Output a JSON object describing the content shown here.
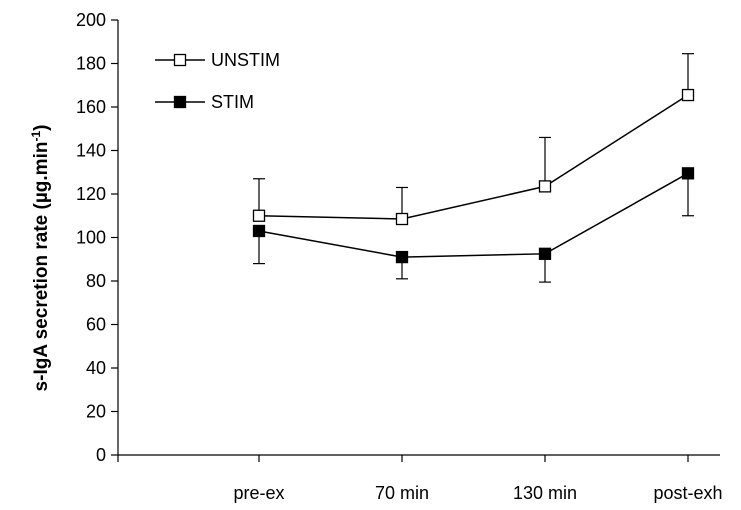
{
  "chart_data": {
    "type": "line",
    "ylabel": "s-IgA secretion rate (µg.min",
    "ylabel_sup": "-1",
    "ylabel_close": ")",
    "categories": [
      "pre-ex",
      "70 min",
      "130 min",
      "post-exh"
    ],
    "ylim": [
      0,
      200
    ],
    "yticks": [
      0,
      20,
      40,
      60,
      80,
      100,
      120,
      140,
      160,
      180,
      200
    ],
    "grid": false,
    "legend_position": "top-left",
    "series": [
      {
        "name": "UNSTIM",
        "marker": "open-square",
        "values": [
          110,
          108.5,
          123.5,
          165.5
        ],
        "error_up": [
          17,
          14.5,
          22.5,
          19
        ],
        "error_down": [
          0,
          0,
          0,
          0
        ]
      },
      {
        "name": "STIM",
        "marker": "filled-square",
        "values": [
          103,
          91,
          92.5,
          129.5
        ],
        "error_up": [
          0,
          0,
          0,
          0
        ],
        "error_down": [
          15,
          10,
          13,
          19.5
        ]
      }
    ]
  }
}
